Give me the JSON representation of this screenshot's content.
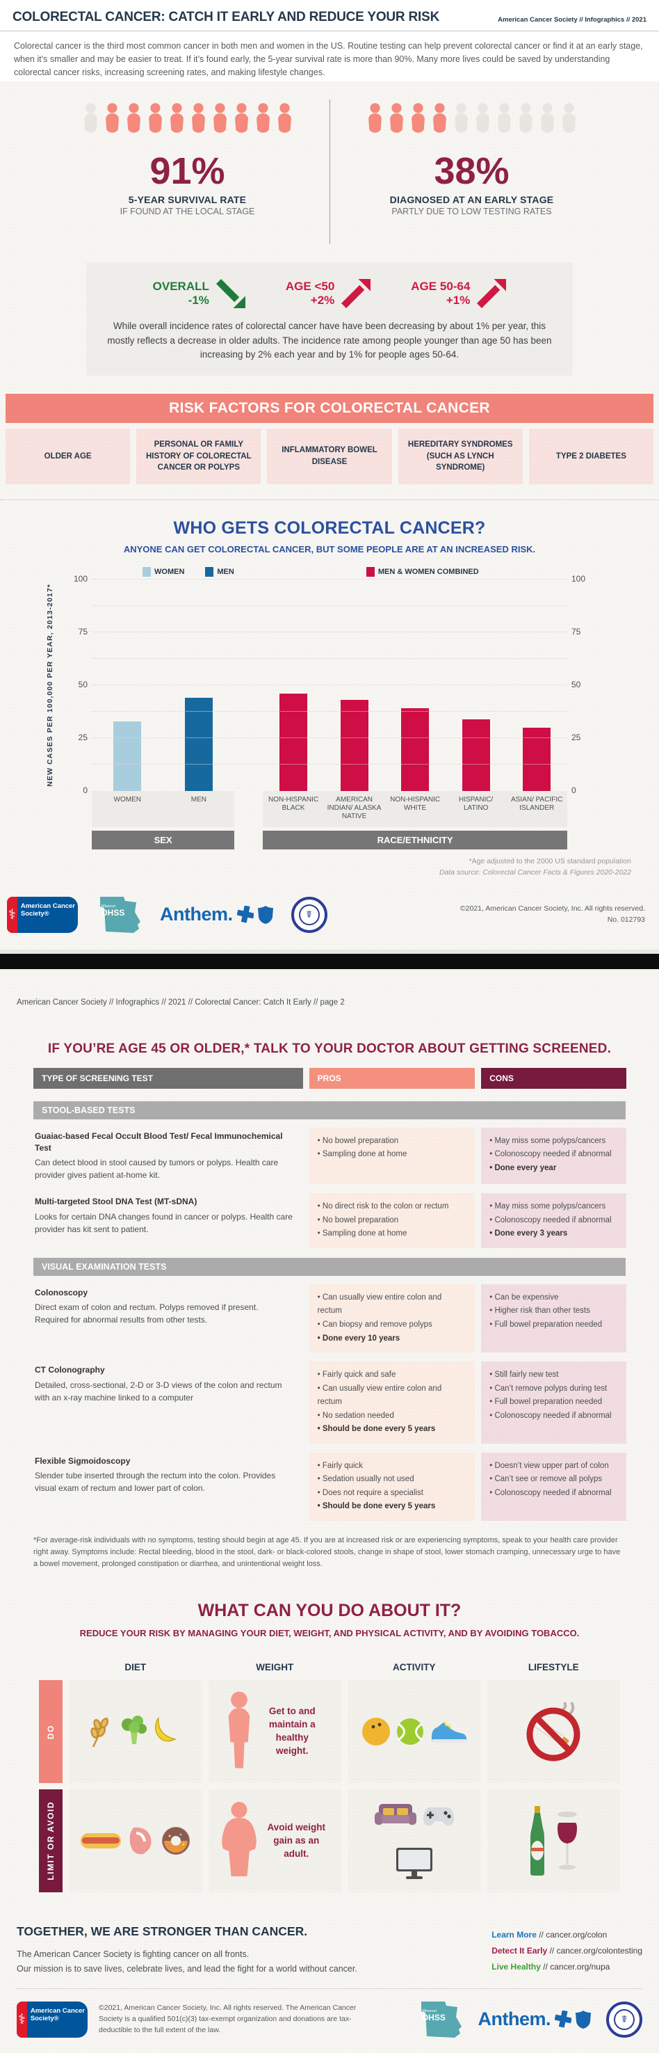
{
  "page1": {
    "header": {
      "title": "COLORECTAL CANCER: CATCH IT EARLY AND REDUCE YOUR RISK",
      "meta": "American Cancer Society // Infographics // 2021"
    },
    "intro": "Colorectal cancer is the third most common cancer in both men and women in the US. Routine testing can help prevent colorectal cancer or find it at an early stage, when it’s smaller and may be easier to treat. If it’s found early, the 5-year survival rate is more than 90%. Many more lives could be saved by understanding colorectal cancer risks, increasing screening rates, and making lifestyle changes.",
    "survival": {
      "pct": "91%",
      "label": "5-YEAR SURVIVAL RATE",
      "sublabel": "IF FOUND AT THE LOCAL STAGE",
      "icons_total": 10,
      "icons_filled": 9,
      "fill_from": "right"
    },
    "diagnosed": {
      "pct": "38%",
      "label": "DIAGNOSED AT AN EARLY STAGE",
      "sublabel": "PARTLY DUE TO LOW TESTING RATES",
      "icons_total": 10,
      "icons_filled": 4,
      "fill_from": "left"
    },
    "trends": {
      "items": [
        {
          "label": "OVERALL",
          "value": "-1%",
          "direction": "down",
          "color": "#1e7d3c"
        },
        {
          "label": "AGE <50",
          "value": "+2%",
          "direction": "up",
          "color": "#ce1a43"
        },
        {
          "label": "AGE 50-64",
          "value": "+1%",
          "direction": "up",
          "color": "#ce1a43"
        }
      ],
      "text": "While overall incidence rates of colorectal cancer have have been decreasing by about 1% per year, this mostly reflects a decrease in older adults. The incidence rate among people younger than age 50 has been increasing by 2% each year and by 1% for people ages 50-64."
    },
    "risk": {
      "title": "RISK FACTORS FOR COLORECTAL CANCER",
      "factors": [
        "OLDER AGE",
        "PERSONAL OR FAMILY HISTORY OF COLORECTAL CANCER OR POLYPS",
        "INFLAMMATORY BOWEL DISEASE",
        "HEREDITARY SYNDROMES (SUCH AS LYNCH SYNDROME)",
        "TYPE 2 DIABETES"
      ]
    },
    "footer": {
      "copyright": "©2021, American Cancer Society, Inc. All rights reserved.",
      "number": "No. 012793",
      "logos": [
        "american-cancer-society-logo",
        "missouri-dhss-logo",
        "anthem-bcbs-logo",
        "missouri-colorectal-cancer-roundtable-seal"
      ]
    }
  },
  "chart_data": {
    "type": "bar",
    "title": "WHO GETS COLORECTAL CANCER?",
    "subtitle": "ANYONE CAN GET COLORECTAL CANCER, BUT SOME PEOPLE ARE AT AN INCREASED RISK.",
    "ylabel": "NEW CASES PER 100,000 PER YEAR, 2013-2017*",
    "ylim": [
      0,
      100
    ],
    "yticks": [
      0,
      25,
      50,
      75,
      100
    ],
    "grid": "dotted, minor every 12.5",
    "legend_position": "top",
    "legend": [
      {
        "label": "WOMEN",
        "color": "#a8cede"
      },
      {
        "label": "MEN",
        "color": "#16699e"
      },
      {
        "label": "MEN & WOMEN COMBINED",
        "color": "#ce0e45"
      }
    ],
    "groups": [
      {
        "label": "SEX",
        "bars": [
          {
            "category": "WOMEN",
            "value": 33,
            "color": "#a8cede"
          },
          {
            "category": "MEN",
            "value": 44,
            "color": "#16699e"
          }
        ]
      },
      {
        "label": "RACE/ETHNICITY",
        "bars": [
          {
            "category": "NON-HISPANIC BLACK",
            "value": 46,
            "color": "#ce0e45"
          },
          {
            "category": "AMERICAN INDIAN/ ALASKA NATIVE",
            "value": 43,
            "color": "#ce0e45"
          },
          {
            "category": "NON-HISPANIC WHITE",
            "value": 39,
            "color": "#ce0e45"
          },
          {
            "category": "HISPANIC/ LATINO",
            "value": 34,
            "color": "#ce0e45"
          },
          {
            "category": "ASIAN/ PACIFIC ISLANDER",
            "value": 30,
            "color": "#ce0e45"
          }
        ]
      }
    ],
    "footnote1": "*Age adjusted to the 2000 US standard population",
    "footnote2": "Data source: Colorectal Cancer Facts & Figures 2020-2022"
  },
  "page2": {
    "breadcrumb": "American Cancer Society // Infographics // 2021 // Colorectal Cancer: Catch It Early // page 2",
    "screening": {
      "title": "IF YOU’RE AGE 45 OR OLDER,* TALK TO YOUR DOCTOR ABOUT GETTING SCREENED.",
      "columns": [
        "TYPE OF SCREENING TEST",
        "PROS",
        "CONS"
      ],
      "sections": [
        {
          "heading": "STOOL-BASED TESTS",
          "tests": [
            {
              "name": "Guaiac-based Fecal Occult Blood Test/ Fecal Immunochemical Test",
              "description": "Can detect blood in stool caused by tumors or polyps. Health care provider gives patient at-home kit.",
              "pros": [
                {
                  "t": "No bowel preparation",
                  "b": false
                },
                {
                  "t": "Sampling done at home",
                  "b": false
                }
              ],
              "cons": [
                {
                  "t": "May miss some polyps/cancers",
                  "b": false
                },
                {
                  "t": "Colonoscopy needed if abnormal",
                  "b": false
                },
                {
                  "t": "Done every year",
                  "b": true
                }
              ]
            },
            {
              "name": "Multi-targeted Stool DNA Test (MT-sDNA)",
              "description": "Looks for certain DNA changes found in cancer or polyps. Health care provider has kit sent to patient.",
              "pros": [
                {
                  "t": "No direct risk to the colon or rectum",
                  "b": false
                },
                {
                  "t": "No bowel preparation",
                  "b": false
                },
                {
                  "t": "Sampling done at home",
                  "b": false
                }
              ],
              "cons": [
                {
                  "t": "May miss some polyps/cancers",
                  "b": false
                },
                {
                  "t": "Colonoscopy needed if abnormal",
                  "b": false
                },
                {
                  "t": "Done every 3 years",
                  "b": true
                }
              ]
            }
          ]
        },
        {
          "heading": "VISUAL EXAMINATION TESTS",
          "tests": [
            {
              "name": "Colonoscopy",
              "description": "Direct exam of colon and rectum. Polyps removed if present. Required for abnormal results from other tests.",
              "pros": [
                {
                  "t": "Can usually view entire colon and rectum",
                  "b": false
                },
                {
                  "t": "Can biopsy and remove polyps",
                  "b": false
                },
                {
                  "t": "Done every 10 years",
                  "b": true
                }
              ],
              "cons": [
                {
                  "t": "Can be expensive",
                  "b": false
                },
                {
                  "t": "Higher risk than other tests",
                  "b": false
                },
                {
                  "t": "Full bowel preparation needed",
                  "b": false
                }
              ]
            },
            {
              "name": "CT Colonography",
              "description": "Detailed, cross-sectional, 2-D or 3-D views of the colon and rectum with an x-ray machine linked to a computer",
              "pros": [
                {
                  "t": "Fairly quick and safe",
                  "b": false
                },
                {
                  "t": "Can usually view entire colon and rectum",
                  "b": false
                },
                {
                  "t": "No sedation needed",
                  "b": false
                },
                {
                  "t": "Should be done every 5 years",
                  "b": true
                }
              ],
              "cons": [
                {
                  "t": "Still fairly new test",
                  "b": false
                },
                {
                  "t": "Can’t remove polyps during test",
                  "b": false
                },
                {
                  "t": "Full bowel preparation needed",
                  "b": false
                },
                {
                  "t": "Colonoscopy needed if abnormal",
                  "b": false
                }
              ]
            },
            {
              "name": "Flexible Sigmoidoscopy",
              "description": "Slender tube inserted through the rectum into the colon. Provides visual exam of rectum and lower part of colon.",
              "pros": [
                {
                  "t": "Fairly quick",
                  "b": false
                },
                {
                  "t": "Sedation usually not used",
                  "b": false
                },
                {
                  "t": "Does not require a specialist",
                  "b": false
                },
                {
                  "t": "Should be done every 5 years",
                  "b": true
                }
              ],
              "cons": [
                {
                  "t": "Doesn’t view upper part of colon",
                  "b": false
                },
                {
                  "t": "Can’t see or remove all polyps",
                  "b": false
                },
                {
                  "t": "Colonoscopy needed if abnormal",
                  "b": false
                }
              ]
            }
          ]
        }
      ],
      "footnote": "*For average-risk individuals with no symptoms, testing should begin at age 45. If you are at increased risk or are experiencing symptoms, speak to your health care provider right away. Symptoms include: Rectal bleeding, blood in the stool, dark- or black-colored stools, change in shape of stool, lower stomach cramping, unnecessary urge to have a bowel movement, prolonged constipation or diarrhea, and unintentional weight loss."
    },
    "prevention": {
      "title": "WHAT CAN YOU DO ABOUT IT?",
      "subtitle": "REDUCE YOUR RISK BY MANAGING YOUR DIET, WEIGHT, AND PHYSICAL ACTIVITY, AND BY AVOIDING TOBACCO.",
      "columns": [
        "DIET",
        "WEIGHT",
        "ACTIVITY",
        "LIFESTYLE"
      ],
      "rows": [
        {
          "label": "DO",
          "color": "#f0837a",
          "cells": [
            {
              "icons": [
                "wheat-icon",
                "broccoli-icon",
                "banana-icon"
              ],
              "text": ""
            },
            {
              "icons": [
                "healthy-person-icon"
              ],
              "text": "Get to and maintain a healthy weight."
            },
            {
              "icons": [
                "bowling-ball-icon",
                "tennis-ball-icon",
                "sneaker-icon"
              ],
              "text": ""
            },
            {
              "icons": [
                "no-smoking-icon"
              ],
              "text": ""
            }
          ]
        },
        {
          "label": "LIMIT OR AVOID",
          "color": "#771a3e",
          "cells": [
            {
              "icons": [
                "hot-dog-icon",
                "meat-icon",
                "donut-icon"
              ],
              "text": ""
            },
            {
              "icons": [
                "overweight-person-icon"
              ],
              "text": "Avoid weight gain as an adult."
            },
            {
              "icons": [
                "couch-icon",
                "game-controller-icon",
                "tv-icon"
              ],
              "text": ""
            },
            {
              "icons": [
                "beer-bottle-icon",
                "wine-glass-icon"
              ],
              "text": ""
            }
          ]
        }
      ]
    },
    "footer": {
      "tagline": "TOGETHER, WE ARE STRONGER THAN CANCER.",
      "mission1": "The American Cancer Society is fighting cancer on all fronts.",
      "mission2": "Our mission is to save lives, celebrate lives, and lead the fight for a world without cancer.",
      "links": [
        {
          "label": "Learn More",
          "sep": " // ",
          "url": "cancer.org/colon",
          "color": "#1b75bc"
        },
        {
          "label": "Detect It Early",
          "sep": " // ",
          "url": "cancer.org/colontesting",
          "color": "#a41e4d"
        },
        {
          "label": "Live Healthy",
          "sep": " // ",
          "url": "cancer.org/nupa",
          "color": "#3f9c35"
        }
      ],
      "legal": "©2021, American Cancer Society, Inc. All rights reserved. The American Cancer Society is a qualified 501(c)(3) tax-exempt organization and donations are tax-deductible to the full extent of the law.",
      "logos": [
        "missouri-dhss-logo",
        "anthem-bcbs-logo",
        "missouri-colorectal-cancer-roundtable-seal"
      ]
    },
    "logo_text": {
      "acs_symbol": "⚕",
      "acs_words": "American Cancer Society®",
      "dhss_state": "Missouri",
      "dhss": "DHSS",
      "anthem": "Anthem.",
      "seal_glyph": "☤"
    }
  }
}
